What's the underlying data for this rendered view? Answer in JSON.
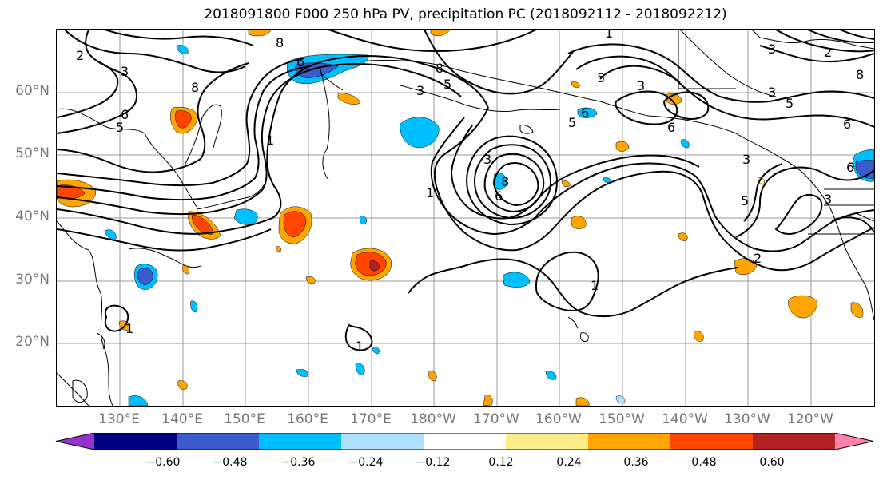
{
  "title": "2018091800 F000 250 hPa PV, precipitation PC (2018092112 - 2018092212)",
  "lat_labels": [
    "60°N",
    "50°N",
    "40°N",
    "30°N",
    "20°N"
  ],
  "lon_labels": [
    "130°E",
    "140°E",
    "150°E",
    "160°E",
    "170°E",
    "180°W",
    "170°W",
    "160°W",
    "150°W",
    "140°W",
    "130°W",
    "120°W"
  ],
  "contour_labels": [
    "1",
    "2",
    "3",
    "5",
    "6",
    "8"
  ],
  "colorbar": {
    "colors": [
      "#9932cc",
      "#000080",
      "#3a5ccc",
      "#00bfff",
      "#b0e2ff",
      "#ffffff",
      "#ffec8b",
      "#ffa500",
      "#ff4500",
      "#b22222",
      "#ff82ab"
    ],
    "tick_labels": [
      "−0.60",
      "−0.48",
      "−0.36",
      "−0.24",
      "−0.12",
      "0.12",
      "0.24",
      "0.36",
      "0.48",
      "0.60"
    ]
  }
}
